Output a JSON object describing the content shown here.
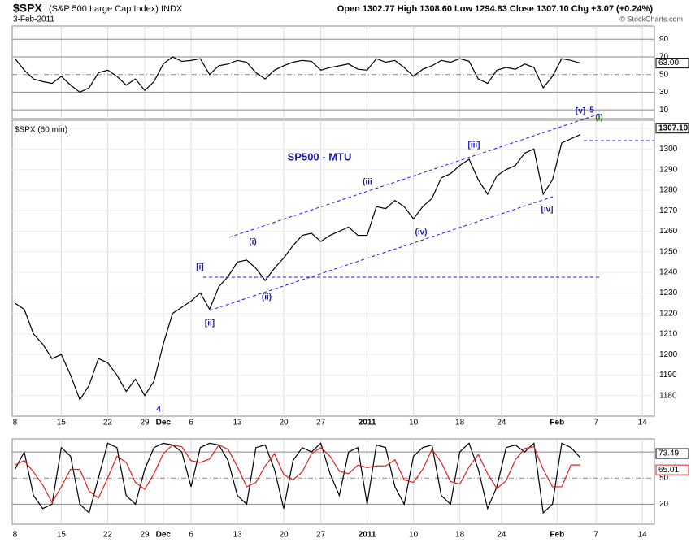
{
  "header": {
    "symbol": "$SPX",
    "name": "(S&P 500 Large Cap Index) INDX",
    "date": "3-Feb-2011",
    "quote": "Open 1302.77  High 1308.60  Low 1294.83  Close 1307.10  Chg +3.07 (+0.24%)",
    "credit": "© StockCharts.com"
  },
  "chart_data": [
    {
      "type": "line",
      "x": [
        0,
        1,
        2,
        3,
        4,
        5,
        6,
        7,
        8,
        9,
        10,
        11,
        12,
        13,
        14,
        15,
        16,
        17,
        18,
        19,
        20,
        21,
        22,
        23,
        24,
        25,
        26,
        27,
        28,
        29,
        30,
        31,
        32,
        33,
        34,
        35,
        36,
        37,
        38,
        39,
        40,
        41,
        42,
        43,
        44,
        45,
        46,
        47,
        48,
        49,
        50,
        51,
        52,
        53,
        54,
        55,
        56,
        57,
        58,
        59,
        60,
        61
      ],
      "xlim": [
        -0.3,
        69
      ],
      "ylim": [
        0,
        105
      ],
      "yticks": [
        10,
        30,
        50,
        70,
        90
      ],
      "series": [
        {
          "color": "#000000",
          "current_label": "63.00",
          "values": [
            68,
            55,
            45,
            42,
            40,
            48,
            38,
            30,
            35,
            52,
            55,
            48,
            38,
            45,
            32,
            42,
            62,
            70,
            65,
            66,
            68,
            50,
            60,
            62,
            66,
            64,
            52,
            45,
            55,
            60,
            64,
            66,
            65,
            55,
            58,
            60,
            62,
            56,
            55,
            68,
            64,
            66,
            58,
            48,
            56,
            60,
            66,
            64,
            68,
            65,
            45,
            40,
            55,
            58,
            56,
            62,
            58,
            35,
            48,
            68,
            66,
            63
          ]
        }
      ]
    },
    {
      "type": "line",
      "title": "$SPX (60 min)",
      "x": [
        0,
        1,
        2,
        3,
        4,
        5,
        6,
        7,
        8,
        9,
        10,
        11,
        12,
        13,
        14,
        15,
        16,
        17,
        18,
        19,
        20,
        21,
        22,
        23,
        24,
        25,
        26,
        27,
        28,
        29,
        30,
        31,
        32,
        33,
        34,
        35,
        36,
        37,
        38,
        39,
        40,
        41,
        42,
        43,
        44,
        45,
        46,
        47,
        48,
        49,
        50,
        51,
        52,
        53,
        54,
        55,
        56,
        57,
        58,
        59,
        60,
        61
      ],
      "xlim": [
        -0.3,
        69
      ],
      "ylim": [
        1170,
        1314
      ],
      "yticks": [
        1180,
        1190,
        1200,
        1210,
        1220,
        1230,
        1240,
        1250,
        1260,
        1270,
        1280,
        1290,
        1300,
        1310
      ],
      "xticks": [
        {
          "value": 0,
          "label": "8"
        },
        {
          "value": 5,
          "label": "15"
        },
        {
          "value": 10,
          "label": "22"
        },
        {
          "value": 14,
          "label": "29"
        },
        {
          "value": 16,
          "label": "Dec"
        },
        {
          "value": 19,
          "label": "6"
        },
        {
          "value": 24,
          "label": "13"
        },
        {
          "value": 29,
          "label": "20"
        },
        {
          "value": 33,
          "label": "27"
        },
        {
          "value": 38,
          "label": "2011"
        },
        {
          "value": 43,
          "label": "10"
        },
        {
          "value": 48,
          "label": "18"
        },
        {
          "value": 52.5,
          "label": "24"
        },
        {
          "value": 58.5,
          "label": "Feb"
        },
        {
          "value": 62.7,
          "label": "7"
        },
        {
          "value": 67.7,
          "label": "14"
        }
      ],
      "series": [
        {
          "color": "#000000",
          "current_label": "1307.10",
          "values": [
            1225,
            1222,
            1210,
            1205,
            1198,
            1200,
            1190,
            1178,
            1185,
            1198,
            1196,
            1190,
            1182,
            1188,
            1180,
            1187,
            1205,
            1220,
            1223,
            1226,
            1230,
            1222,
            1233,
            1238,
            1245,
            1246,
            1242,
            1236,
            1242,
            1247,
            1253,
            1258,
            1259,
            1255,
            1258,
            1260,
            1262,
            1258,
            1258,
            1272,
            1271,
            1275,
            1272,
            1266,
            1272,
            1276,
            1286,
            1288,
            1292,
            1295,
            1285,
            1278,
            1287,
            1290,
            1292,
            1298,
            1300,
            1278,
            1285,
            1303,
            1305,
            1307
          ]
        }
      ],
      "annotations": [
        {
          "text": "SP500 - MTU",
          "color": "#1a1aa6"
        },
        {
          "text": "[v]",
          "color": "#1a1aa6"
        },
        {
          "text": "5",
          "color": "#1a1aa6"
        },
        {
          "text": "(i)",
          "color": "#1f6b1f"
        },
        {
          "text": "[iii]",
          "color": "#1a1aa6"
        },
        {
          "text": "(iii",
          "color": "#1a1aa6"
        },
        {
          "text": "[i]",
          "color": "#1a1aa6"
        },
        {
          "text": "(i)",
          "color": "#1a1aa6"
        },
        {
          "text": "(ii)",
          "color": "#1a1aa6"
        },
        {
          "text": "[ii]",
          "color": "#1a1aa6"
        },
        {
          "text": "(iv)",
          "color": "#1a1aa6"
        },
        {
          "text": "[iv]",
          "color": "#1a1aa6"
        },
        {
          "text": "4",
          "color": "#1a1aa6"
        }
      ]
    },
    {
      "type": "line",
      "x": [
        0,
        1,
        2,
        3,
        4,
        5,
        6,
        7,
        8,
        9,
        10,
        11,
        12,
        13,
        14,
        15,
        16,
        17,
        18,
        19,
        20,
        21,
        22,
        23,
        24,
        25,
        26,
        27,
        28,
        29,
        30,
        31,
        32,
        33,
        34,
        35,
        36,
        37,
        38,
        39,
        40,
        41,
        42,
        43,
        44,
        45,
        46,
        47,
        48,
        49,
        50,
        51,
        52,
        53,
        54,
        55,
        56,
        57,
        58,
        59,
        60,
        61
      ],
      "xlim": [
        -0.3,
        69
      ],
      "ylim": [
        -3,
        95
      ],
      "yticks": [
        20,
        50,
        80
      ],
      "xticks": [
        {
          "value": 0,
          "label": "8"
        },
        {
          "value": 5,
          "label": "15"
        },
        {
          "value": 10,
          "label": "22"
        },
        {
          "value": 14,
          "label": "29"
        },
        {
          "value": 16,
          "label": "Dec"
        },
        {
          "value": 19,
          "label": "6"
        },
        {
          "value": 24,
          "label": "13"
        },
        {
          "value": 29,
          "label": "20"
        },
        {
          "value": 33,
          "label": "27"
        },
        {
          "value": 38,
          "label": "2011"
        },
        {
          "value": 43,
          "label": "10"
        },
        {
          "value": 48,
          "label": "18"
        },
        {
          "value": 52.5,
          "label": "24"
        },
        {
          "value": 58.5,
          "label": "Feb"
        },
        {
          "value": 62.7,
          "label": "7"
        },
        {
          "value": 67.7,
          "label": "14"
        }
      ],
      "series": [
        {
          "color": "#000000",
          "current_label": "73.49",
          "values": [
            60,
            80,
            30,
            15,
            20,
            85,
            75,
            20,
            10,
            50,
            90,
            85,
            30,
            20,
            60,
            85,
            90,
            88,
            80,
            40,
            85,
            90,
            88,
            70,
            30,
            20,
            85,
            88,
            60,
            15,
            70,
            85,
            80,
            90,
            55,
            30,
            80,
            85,
            20,
            88,
            85,
            40,
            20,
            75,
            85,
            88,
            30,
            20,
            80,
            90,
            60,
            15,
            40,
            85,
            88,
            80,
            90,
            10,
            20,
            90,
            85,
            73.49
          ]
        },
        {
          "color": "#e02020",
          "current_label": "65.01",
          "values": [
            65,
            70,
            57,
            42,
            22,
            40,
            60,
            60,
            35,
            27,
            50,
            75,
            68,
            45,
            37,
            55,
            78,
            88,
            86,
            70,
            68,
            72,
            88,
            83,
            63,
            40,
            45,
            64,
            78,
            54,
            48,
            57,
            78,
            85,
            75,
            58,
            55,
            65,
            62,
            64,
            64,
            71,
            48,
            45,
            60,
            83,
            68,
            46,
            43,
            63,
            77,
            55,
            38,
            47,
            71,
            84,
            86,
            60,
            40,
            40,
            65,
            65.01
          ]
        }
      ]
    }
  ]
}
